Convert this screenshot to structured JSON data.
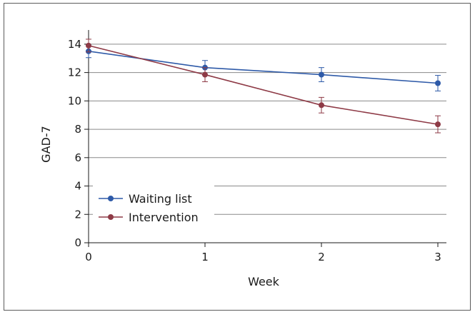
{
  "chart_data": {
    "type": "line",
    "xlabel": "Week",
    "ylabel": "GAD-7",
    "x": [
      0,
      1,
      2,
      3
    ],
    "xticks": [
      "0",
      "1",
      "2",
      "3"
    ],
    "ylim": [
      0,
      15
    ],
    "yticks": [
      "0",
      "2",
      "4",
      "6",
      "8",
      "10",
      "12",
      "14"
    ],
    "grid": "horizontal",
    "legend_position": "bottom-left",
    "series": [
      {
        "name": "Waiting list",
        "color": "#2e5aa8",
        "values": [
          13.5,
          12.35,
          11.85,
          11.25
        ],
        "error": [
          0.45,
          0.5,
          0.5,
          0.55
        ]
      },
      {
        "name": "Intervention",
        "color": "#8e3a46",
        "values": [
          13.9,
          11.85,
          9.7,
          8.35
        ],
        "error": [
          0.45,
          0.5,
          0.55,
          0.6
        ]
      }
    ]
  }
}
